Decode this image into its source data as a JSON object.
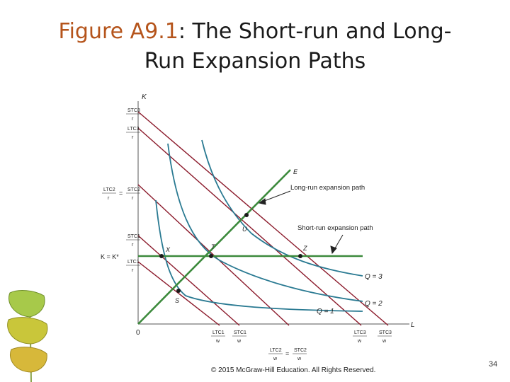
{
  "slide": {
    "title_accent": "Figure A9.1",
    "title_rest": ": The Short-run and Long-",
    "title_line2": "Run Expansion Paths",
    "copyright": "© 2015 McGraw-Hill Education. All Rights Reserved.",
    "page_number": "34"
  },
  "diagram": {
    "axis_y": "K",
    "axis_x": "L",
    "origin": "0",
    "k_level": "K = K*",
    "stc3_num": "STC3",
    "stc3_den": "r",
    "ltc3_num": "LTC3",
    "ltc3_den": "r",
    "ltc2_num": "LTC2",
    "stc2_num": "STC2",
    "ltc2_den": "r",
    "stc2_den": "r",
    "stc1_num": "STC1",
    "stc1_den": "r",
    "ltc1_num": "LTC1",
    "ltc1_den": "r",
    "eq": "=",
    "x_ltc1": "LTC1",
    "x_stc1": "STC1",
    "x_ltc3": "LTC3",
    "x_stc3": "STC3",
    "x_ltc2": "LTC2",
    "x_stc2": "STC2",
    "x_den": "w",
    "point_E": "E",
    "point_U": "U",
    "point_T": "T",
    "point_X": "X",
    "point_Z": "Z",
    "point_S": "S",
    "long_run_label": "Long-run expansion path",
    "short_run_label": "Short-run expansion path",
    "q3": "Q = 3",
    "q2": "Q = 2",
    "q1": "Q = 1",
    "colors": {
      "isoquant": "#2a7a92",
      "isocost": "#8b1a2b",
      "expansion": "#3c8a3c"
    }
  }
}
